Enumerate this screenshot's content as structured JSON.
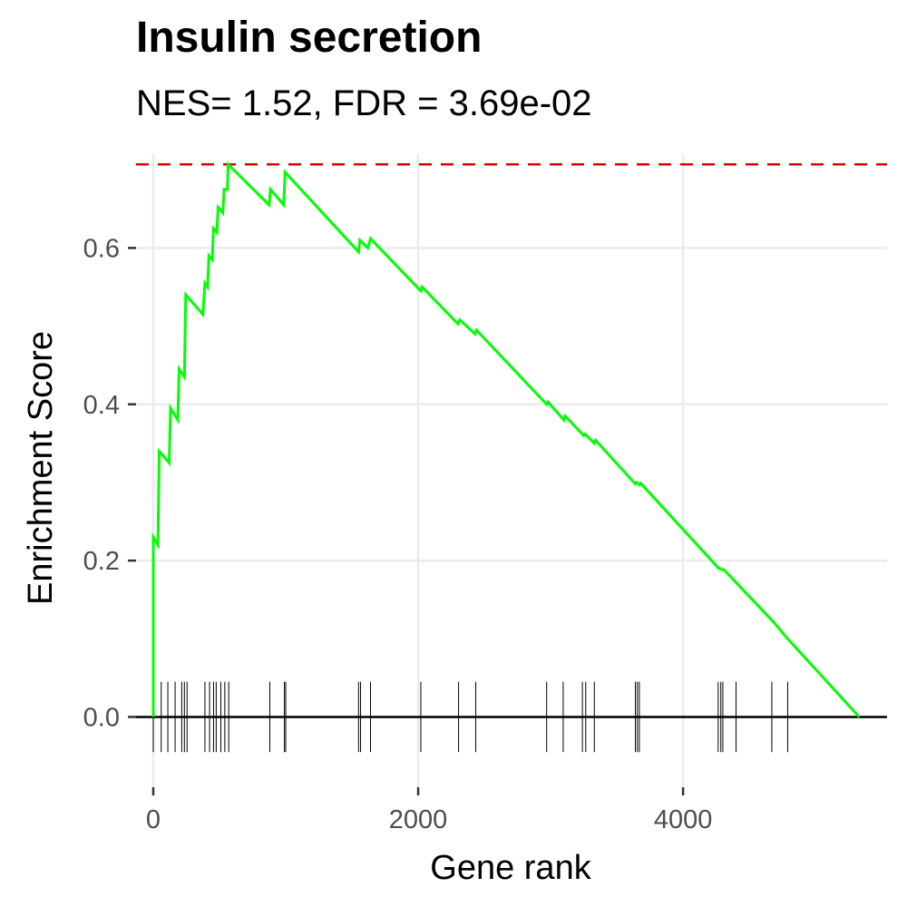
{
  "chart_data": {
    "type": "line",
    "title": "Insulin secretion",
    "subtitle": "NES= 1.52, FDR = 3.69e-02",
    "xlabel": "Gene rank",
    "ylabel": "Enrichment Score",
    "xlim": [
      -130,
      5540
    ],
    "ylim": [
      -0.09,
      0.72
    ],
    "xticks": [
      0,
      2000,
      4000
    ],
    "xtick_labels": [
      "0",
      "2000",
      "4000"
    ],
    "yticks": [
      0.0,
      0.2,
      0.4,
      0.6
    ],
    "ytick_labels": [
      "0.0",
      "0.2",
      "0.4",
      "0.6"
    ],
    "grid": true,
    "line_color": "#00ff00",
    "dashed_line_color": "#e00000",
    "max_es": 0.707,
    "series": [
      {
        "points": [
          [
            0,
            0.0
          ],
          [
            0,
            0.23
          ],
          [
            35,
            0.22
          ],
          [
            45,
            0.34
          ],
          [
            120,
            0.325
          ],
          [
            130,
            0.395
          ],
          [
            185,
            0.38
          ],
          [
            195,
            0.445
          ],
          [
            235,
            0.435
          ],
          [
            245,
            0.54
          ],
          [
            375,
            0.515
          ],
          [
            390,
            0.555
          ],
          [
            410,
            0.55
          ],
          [
            420,
            0.59
          ],
          [
            445,
            0.585
          ],
          [
            455,
            0.625
          ],
          [
            480,
            0.62
          ],
          [
            490,
            0.652
          ],
          [
            525,
            0.645
          ],
          [
            535,
            0.675
          ],
          [
            560,
            0.675
          ],
          [
            565,
            0.707
          ],
          [
            875,
            0.655
          ],
          [
            885,
            0.675
          ],
          [
            985,
            0.655
          ],
          [
            995,
            0.697
          ],
          [
            1550,
            0.595
          ],
          [
            1560,
            0.61
          ],
          [
            1620,
            0.6
          ],
          [
            1640,
            0.612
          ],
          [
            2020,
            0.545
          ],
          [
            2030,
            0.55
          ],
          [
            2300,
            0.503
          ],
          [
            2315,
            0.508
          ],
          [
            2430,
            0.49
          ],
          [
            2440,
            0.495
          ],
          [
            2970,
            0.4
          ],
          [
            2980,
            0.403
          ],
          [
            3100,
            0.38
          ],
          [
            3110,
            0.385
          ],
          [
            3250,
            0.36
          ],
          [
            3260,
            0.362
          ],
          [
            3330,
            0.35
          ],
          [
            3340,
            0.354
          ],
          [
            3640,
            0.298
          ],
          [
            3650,
            0.3
          ],
          [
            3670,
            0.297
          ],
          [
            3680,
            0.299
          ],
          [
            4270,
            0.19
          ],
          [
            4280,
            0.19
          ],
          [
            4300,
            0.188
          ],
          [
            4310,
            0.188
          ],
          [
            4400,
            0.172
          ],
          [
            4680,
            0.122
          ],
          [
            4790,
            0.1
          ],
          [
            5330,
            0.0
          ]
        ]
      }
    ],
    "hit_ranks": [
      0,
      60,
      110,
      165,
      215,
      235,
      255,
      390,
      425,
      455,
      475,
      510,
      540,
      570,
      880,
      990,
      1000,
      1550,
      1565,
      1640,
      2020,
      2305,
      2435,
      2970,
      3095,
      3240,
      3265,
      3330,
      3640,
      3655,
      3670,
      4265,
      4285,
      4300,
      4400,
      4670,
      4790
    ]
  }
}
